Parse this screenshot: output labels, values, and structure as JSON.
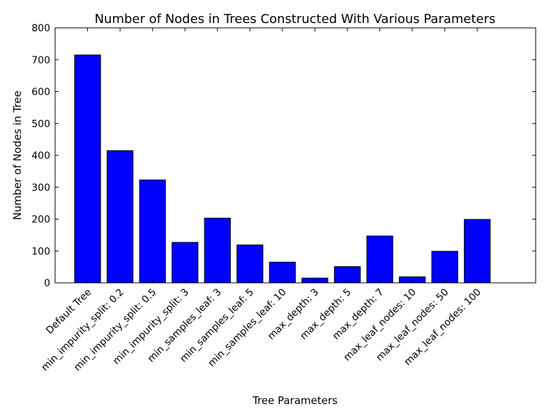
{
  "chart_data": {
    "type": "bar",
    "title": "Number of Nodes in Trees Constructed With Various Parameters",
    "xlabel": "Tree Parameters",
    "ylabel": "Number of Nodes in Tree",
    "categories": [
      "Default Tree",
      "min_impurity_split: 0.2",
      "min_impurity_split: 0.5",
      "min_impurity_split: 3",
      "min_samples_leaf: 3",
      "min_samples_leaf: 5",
      "min_samples_leaf: 10",
      "max_depth: 3",
      "max_depth: 5",
      "max_depth: 7",
      "max_leaf_nodes: 10",
      "max_leaf_nodes: 50",
      "max_leaf_nodes: 100"
    ],
    "values": [
      715,
      415,
      323,
      127,
      203,
      119,
      65,
      15,
      51,
      147,
      19,
      99,
      199
    ],
    "ylim": [
      0,
      800
    ],
    "yticks": [
      0,
      100,
      200,
      300,
      400,
      500,
      600,
      700,
      800
    ],
    "grid": false,
    "bar_color": "#0000ff",
    "edge_color": "#000000"
  }
}
